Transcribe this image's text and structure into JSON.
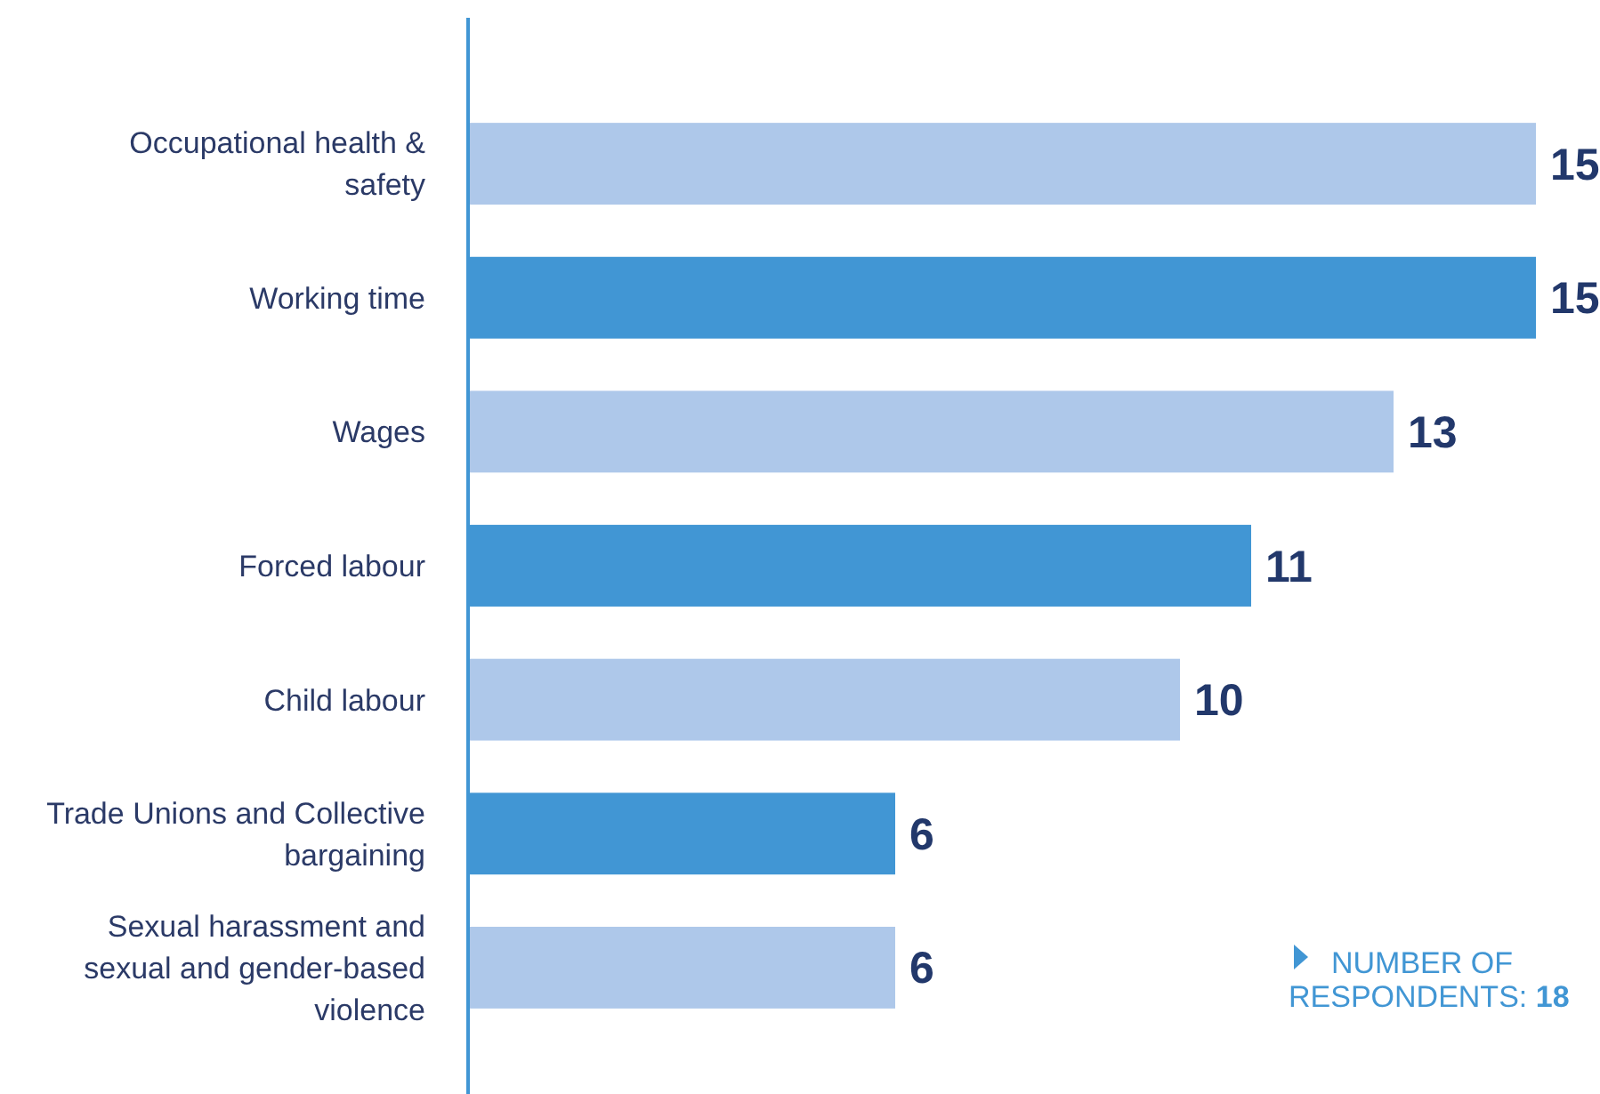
{
  "chart_data": {
    "type": "bar",
    "orientation": "horizontal",
    "relative": false,
    "categories": [
      "Occupational health & safety",
      "Working time",
      "Wages",
      "Forced labour",
      "Child labour",
      "Trade Unions and Collective bargaining",
      "Sexual harassment and sexual and gender-based violence"
    ],
    "values": [
      15,
      15,
      13,
      11,
      10,
      6,
      6
    ],
    "colors": [
      "#aec8ea",
      "#4196d4",
      "#aec8ea",
      "#4196d4",
      "#aec8ea",
      "#4196d4",
      "#aec8ea"
    ],
    "data_labels": true,
    "annotations": [
      "NUMBER OF RESPONDENTS: 18"
    ]
  }
}
